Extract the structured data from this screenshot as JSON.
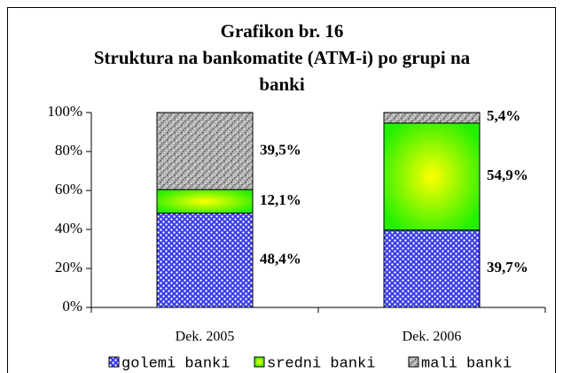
{
  "chart_data": {
    "type": "stacked_bar",
    "title": "Grafikon br. 16",
    "subtitle": "Struktura na bankomatite (ATM-i) po grupi na banki",
    "categories": [
      "Dek. 2005",
      "Dek. 2006"
    ],
    "series": [
      {
        "name": "golemi banki",
        "color": "#3b3bf0",
        "values": [
          48.4,
          39.7
        ],
        "value_labels": [
          "48,4%",
          "39,7%"
        ]
      },
      {
        "name": "sredni banki",
        "color": "#22f000",
        "values": [
          12.1,
          54.9
        ],
        "value_labels": [
          "12,1%",
          "54,9%"
        ]
      },
      {
        "name": "mali banki",
        "color": "#b0b0b0",
        "values": [
          39.5,
          5.4
        ],
        "value_labels": [
          "39,5%",
          "5,4%"
        ]
      }
    ],
    "ylim": [
      0,
      100
    ],
    "yticks": [
      {
        "value": 0,
        "label": "0%"
      },
      {
        "value": 20,
        "label": "20%"
      },
      {
        "value": 40,
        "label": "40%"
      },
      {
        "value": 60,
        "label": "60%"
      },
      {
        "value": 80,
        "label": "80%"
      },
      {
        "value": 100,
        "label": "100%"
      }
    ],
    "legend": "bottom"
  }
}
